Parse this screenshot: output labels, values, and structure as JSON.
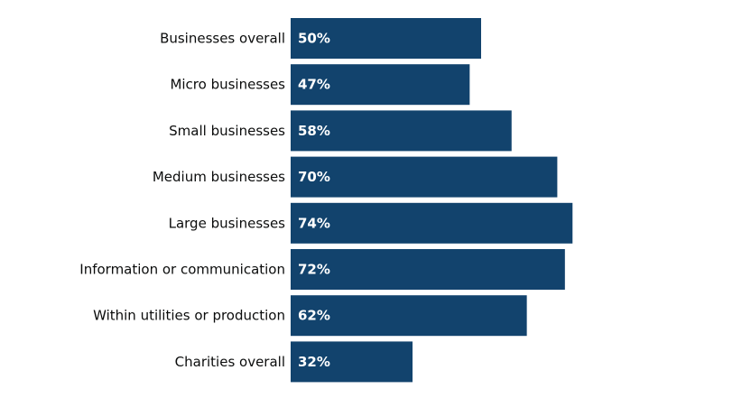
{
  "chart_data": {
    "type": "bar",
    "orientation": "horizontal",
    "categories": [
      "Businesses overall",
      "Micro businesses",
      "Small businesses",
      "Medium businesses",
      "Large businesses",
      "Information or communication",
      "Within utilities or production",
      "Charities overall"
    ],
    "values": [
      50,
      47,
      58,
      70,
      74,
      72,
      62,
      32
    ],
    "value_labels": [
      "50%",
      "47%",
      "58%",
      "70%",
      "74%",
      "72%",
      "62%",
      "32%"
    ],
    "xlim": [
      0,
      100
    ],
    "grid": false,
    "bar_color": "#12436D",
    "title": "",
    "xlabel": "",
    "ylabel": ""
  }
}
